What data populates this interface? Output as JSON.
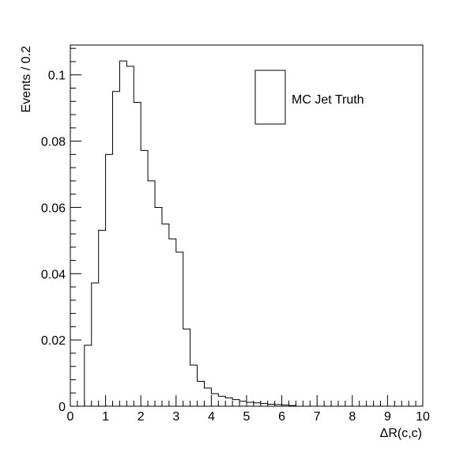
{
  "chart_data": {
    "type": "histogram",
    "xlabel": "ΔR(c,c)",
    "ylabel": "Events / 0.2",
    "xlim": [
      0,
      10
    ],
    "ylim": [
      0,
      0.109
    ],
    "bin_width": 0.2,
    "x_ticks": [
      "0",
      "1",
      "2",
      "3",
      "4",
      "5",
      "6",
      "7",
      "8",
      "9",
      "10"
    ],
    "y_ticks": [
      "0",
      "0.02",
      "0.04",
      "0.06",
      "0.08",
      "0.1"
    ],
    "y_tick_values": [
      0,
      0.02,
      0.04,
      0.06,
      0.08,
      0.1
    ],
    "legend": {
      "entry": "MC Jet Truth",
      "placement": "top-right"
    },
    "grid": false,
    "series": [
      {
        "name": "MC Jet Truth",
        "bin_low_edges": [
          0.4,
          0.6,
          0.8,
          1.0,
          1.2,
          1.4,
          1.6,
          1.8,
          2.0,
          2.2,
          2.4,
          2.6,
          2.8,
          3.0,
          3.2,
          3.4,
          3.6,
          3.8,
          4.0,
          4.2,
          4.4,
          4.6,
          4.8,
          5.0,
          5.2,
          5.4,
          5.6,
          5.8,
          6.0,
          6.2
        ],
        "values": [
          0.0184,
          0.0372,
          0.0531,
          0.076,
          0.095,
          0.1042,
          0.1026,
          0.0917,
          0.0772,
          0.068,
          0.06,
          0.055,
          0.0505,
          0.0465,
          0.0233,
          0.0124,
          0.0075,
          0.0055,
          0.0038,
          0.003,
          0.0025,
          0.002,
          0.0015,
          0.0012,
          0.001,
          0.0008,
          0.0006,
          0.0005,
          0.0004,
          0.0002
        ]
      }
    ]
  }
}
